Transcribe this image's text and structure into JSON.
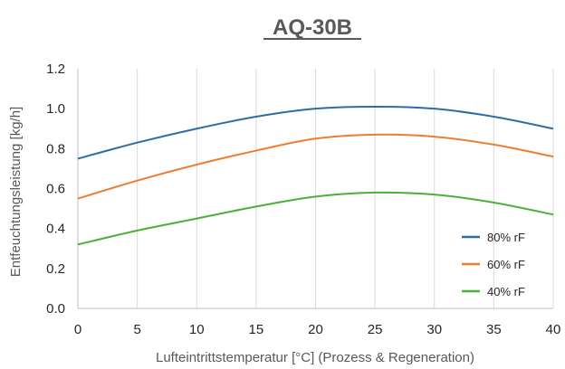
{
  "chart_data": {
    "type": "line",
    "title": "AQ-30B",
    "xlabel": "Lufteintrittstemperatur [°C] (Prozess & Regeneration)",
    "ylabel": "Entfeuchtungsleistung [kg/h]",
    "xlim": [
      0,
      40
    ],
    "ylim": [
      0,
      1.2
    ],
    "x_ticks": [
      "0",
      "5",
      "10",
      "15",
      "20",
      "25",
      "30",
      "35",
      "40"
    ],
    "y_ticks": [
      "0.0",
      "0.2",
      "0.4",
      "0.6",
      "0.8",
      "1.0",
      "1.2"
    ],
    "grid": "vertical",
    "legend_position": "bottom-right",
    "x": [
      0,
      5,
      10,
      15,
      20,
      25,
      30,
      35,
      40
    ],
    "series": [
      {
        "name": "80% rF",
        "color": "#2e6da4",
        "values": [
          0.75,
          0.83,
          0.9,
          0.96,
          1.0,
          1.01,
          1.0,
          0.96,
          0.9
        ]
      },
      {
        "name": "60% rF",
        "color": "#ed7d31",
        "values": [
          0.55,
          0.64,
          0.72,
          0.79,
          0.85,
          0.87,
          0.86,
          0.82,
          0.76
        ]
      },
      {
        "name": "40% rF",
        "color": "#4caf3a",
        "values": [
          0.32,
          0.39,
          0.45,
          0.51,
          0.56,
          0.58,
          0.57,
          0.53,
          0.47
        ]
      }
    ]
  }
}
